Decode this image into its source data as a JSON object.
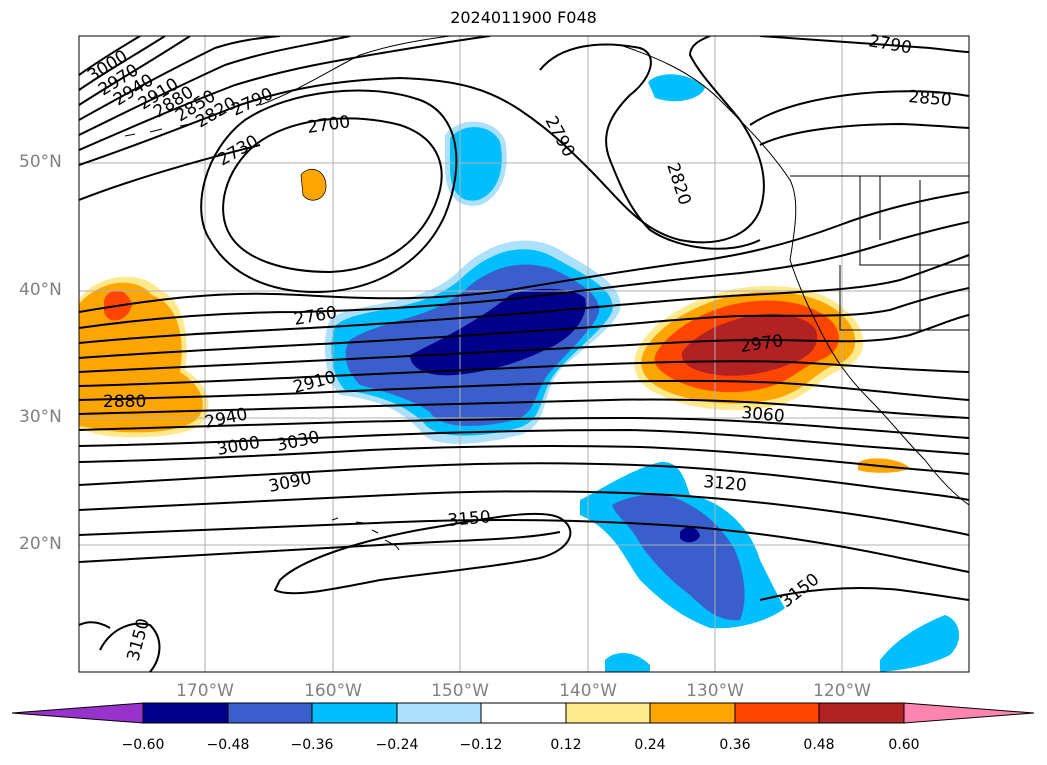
{
  "title": "2024011900 F048",
  "lat_labels": [
    "50°N",
    "40°N",
    "30°N",
    "20°N"
  ],
  "lon_labels": [
    "170°W",
    "160°W",
    "150°W",
    "140°W",
    "130°W",
    "120°W"
  ],
  "contour_labels": [
    "3000",
    "2970",
    "2940",
    "2910",
    "2880",
    "2850",
    "2820",
    "2790",
    "2730",
    "2700",
    "2790",
    "2820",
    "2790",
    "2850",
    "2760",
    "2910",
    "2880",
    "2940",
    "3000",
    "3030",
    "3090",
    "2970",
    "3060",
    "3120",
    "3150",
    "3150",
    "3150"
  ],
  "colorbar": {
    "tick_labels": [
      "−0.60",
      "−0.48",
      "−0.36",
      "−0.24",
      "−0.12",
      "0.12",
      "0.24",
      "0.36",
      "0.48",
      "0.60"
    ],
    "colors": [
      "#9932CC",
      "#00008B",
      "#3A5FCD",
      "#00BFFF",
      "#ADE0FA",
      "#FFFFFF",
      "#FFE98A",
      "#FFA500",
      "#FF4500",
      "#B22222",
      "#FF85B0"
    ]
  },
  "fill_colors": {
    "neg_strong": "#00008B",
    "neg_mid": "#3A5FCD",
    "neg_light": "#00BFFF",
    "neg_faint": "#ADE0FA",
    "pos_faint": "#FFE98A",
    "pos_light": "#FFA500",
    "pos_mid": "#FF4500",
    "pos_strong": "#B22222"
  }
}
